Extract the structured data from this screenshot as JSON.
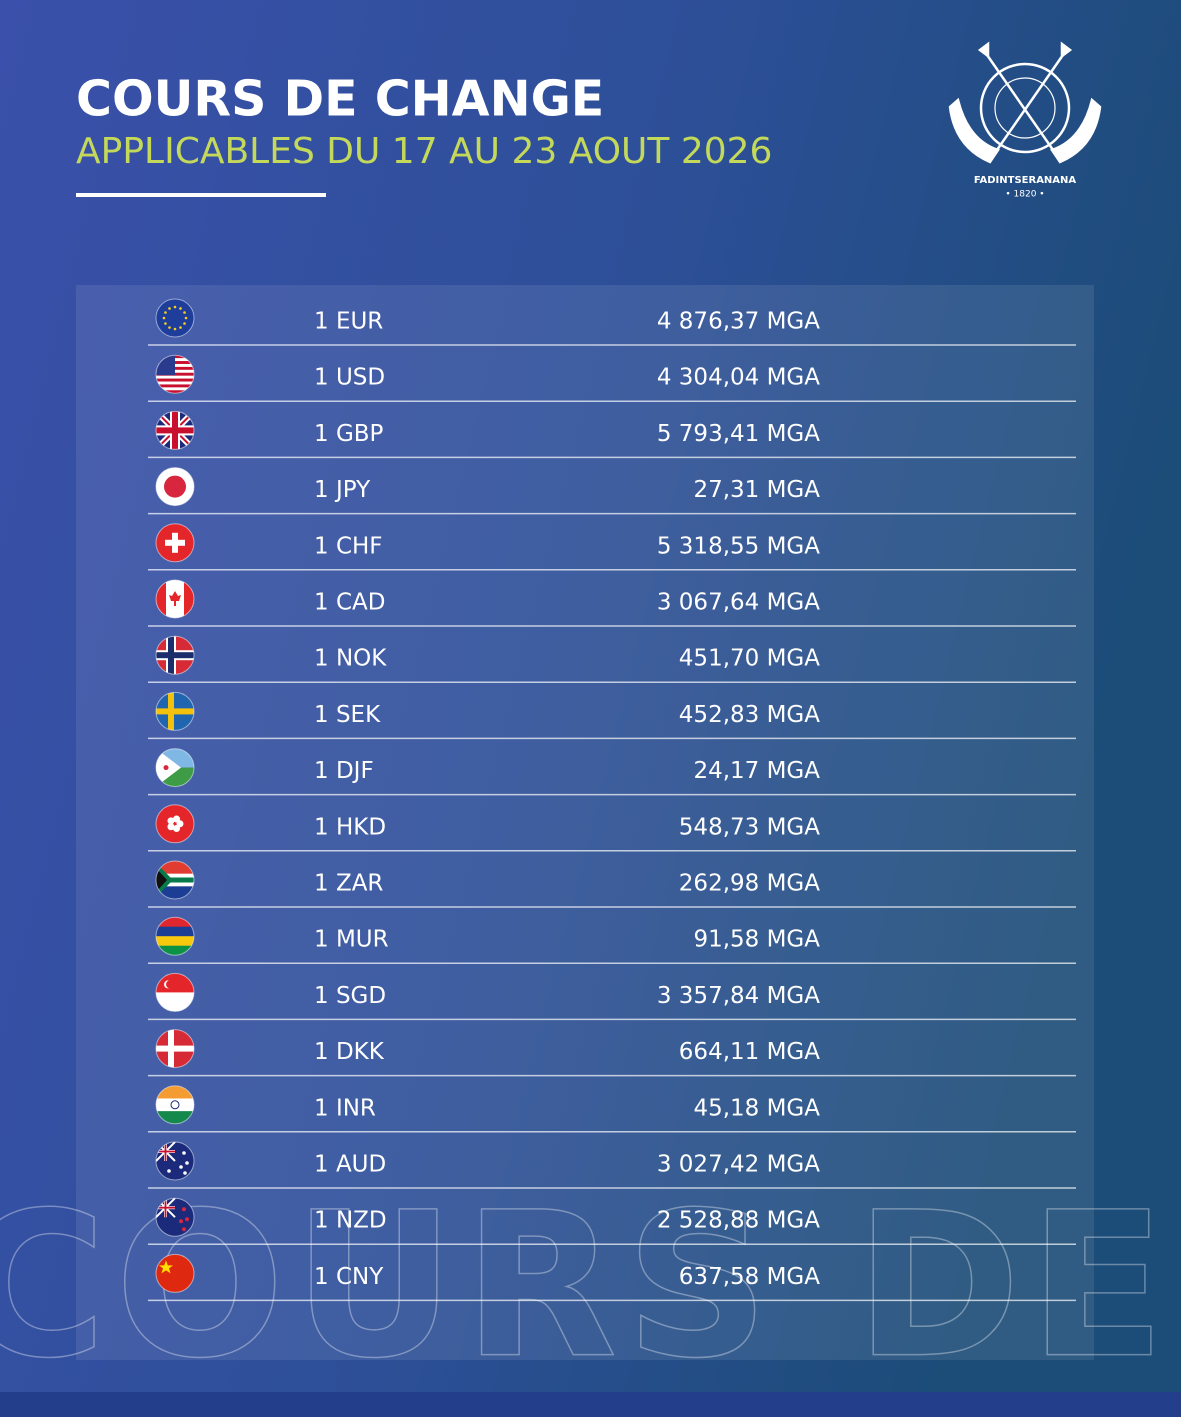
{
  "header": {
    "title": "COURS DE CHANGE",
    "subtitle": "APPLICABLES DU 17 AU 23 AOUT 2026"
  },
  "logo": {
    "name": "FADINTSERANANA",
    "year": "• 1820 •"
  },
  "watermark": "COURS DE CHANGE",
  "table": {
    "rows": [
      {
        "currency": "1 EUR",
        "rate": "4 876,37 MGA"
      },
      {
        "currency": "1 USD",
        "rate": "4 304,04 MGA"
      },
      {
        "currency": "1 GBP",
        "rate": "5 793,41 MGA"
      },
      {
        "currency": "1 JPY",
        "rate": "27,31 MGA"
      },
      {
        "currency": "1 CHF",
        "rate": "5 318,55 MGA"
      },
      {
        "currency": "1 CAD",
        "rate": "3 067,64 MGA"
      },
      {
        "currency": "1 NOK",
        "rate": "451,70 MGA"
      },
      {
        "currency": "1 SEK",
        "rate": "452,83 MGA"
      },
      {
        "currency": "1 DJF",
        "rate": "24,17 MGA"
      },
      {
        "currency": "1 HKD",
        "rate": "548,73 MGA"
      },
      {
        "currency": "1 ZAR",
        "rate": "262,98 MGA"
      },
      {
        "currency": "1 MUR",
        "rate": "91,58 MGA"
      },
      {
        "currency": "1 SGD",
        "rate": "3 357,84 MGA"
      },
      {
        "currency": "1 DKK",
        "rate": "664,11 MGA"
      },
      {
        "currency": "1 INR",
        "rate": "45,18 MGA"
      },
      {
        "currency": "1 AUD",
        "rate": "3 027,42 MGA"
      },
      {
        "currency": "1 NZD",
        "rate": "2 528,88 MGA"
      },
      {
        "currency": "1 CNY",
        "rate": "637,58 MGA"
      }
    ]
  }
}
